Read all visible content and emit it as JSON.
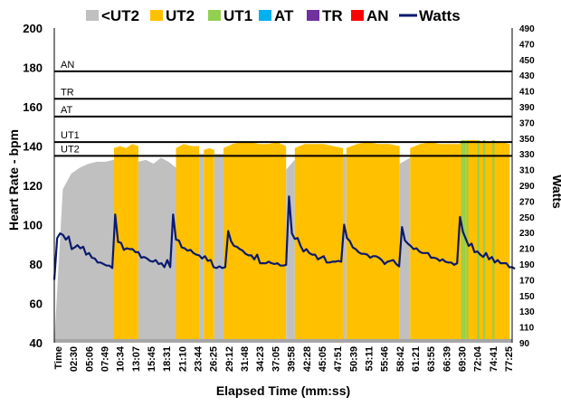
{
  "chart_data": {
    "type": "area",
    "title": "",
    "xlabel": "Elapsed Time (mm:ss)",
    "ylabel": "Heart Rate - bpm",
    "y2label": "Watts",
    "ylim": [
      40,
      200
    ],
    "y2lim": [
      90,
      490
    ],
    "yticks": [
      40,
      60,
      80,
      100,
      120,
      140,
      160,
      180,
      200
    ],
    "y2ticks": [
      90,
      110,
      130,
      150,
      170,
      190,
      210,
      230,
      250,
      270,
      290,
      310,
      330,
      350,
      370,
      390,
      410,
      430,
      450,
      470,
      490
    ],
    "x_tick_labels": [
      "Time",
      "02:30",
      "05:06",
      "07:49",
      "10:34",
      "13:07",
      "15:45",
      "18:31",
      "21:10",
      "23:44",
      "26:25",
      "29:12",
      "31:48",
      "34:23",
      "37:05",
      "39:58",
      "42:28",
      "45:05",
      "47:51",
      "50:39",
      "53:11",
      "55:46",
      "58:42",
      "61:21",
      "63:55",
      "66:39",
      "69:30",
      "72:04",
      "74:41",
      "77:25"
    ],
    "legend": [
      {
        "name": "<UT2",
        "color": "#c0c0c0",
        "kind": "box"
      },
      {
        "name": "UT2",
        "color": "#ffc000",
        "kind": "box"
      },
      {
        "name": "UT1",
        "color": "#92d050",
        "kind": "box"
      },
      {
        "name": "AT",
        "color": "#00b0f0",
        "kind": "box"
      },
      {
        "name": "TR",
        "color": "#7030a0",
        "kind": "box"
      },
      {
        "name": "AN",
        "color": "#ff0000",
        "kind": "box"
      },
      {
        "name": "Watts",
        "color": "#0a1a6e",
        "kind": "line"
      }
    ],
    "zone_thresholds": [
      {
        "name": "UT2",
        "hr": 135
      },
      {
        "name": "UT1",
        "hr": 142
      },
      {
        "name": "AT",
        "hr": 155
      },
      {
        "name": "TR",
        "hr": 164
      },
      {
        "name": "AN",
        "hr": 178
      }
    ],
    "hr_segments": [
      {
        "start": 0.0,
        "end": 10.3,
        "zone": "<UT2",
        "hr": [
          40,
          118,
          126,
          129,
          131,
          132,
          132,
          133
        ]
      },
      {
        "start": 10.3,
        "end": 14.5,
        "zone": "UT2",
        "hr": [
          139,
          140,
          139,
          141,
          140
        ]
      },
      {
        "start": 14.5,
        "end": 21.0,
        "zone": "<UT2",
        "hr": [
          132,
          133,
          131,
          134,
          132,
          129
        ]
      },
      {
        "start": 21.0,
        "end": 25.0,
        "zone": "UT2",
        "hr": [
          139,
          141,
          140,
          140
        ]
      },
      {
        "start": 25.0,
        "end": 25.8,
        "zone": "<UT2",
        "hr": [
          136,
          136
        ]
      },
      {
        "start": 25.8,
        "end": 27.6,
        "zone": "UT2",
        "hr": [
          138,
          139,
          138
        ]
      },
      {
        "start": 27.6,
        "end": 29.2,
        "zone": "<UT2",
        "hr": [
          136,
          136
        ]
      },
      {
        "start": 29.2,
        "end": 40.0,
        "zone": "UT2",
        "hr": [
          139,
          141,
          142,
          142,
          141,
          141,
          142,
          140
        ]
      },
      {
        "start": 40.0,
        "end": 41.5,
        "zone": "<UT2",
        "hr": [
          128,
          133
        ]
      },
      {
        "start": 41.5,
        "end": 49.8,
        "zone": "UT2",
        "hr": [
          139,
          141,
          141,
          141,
          140,
          139
        ]
      },
      {
        "start": 49.8,
        "end": 50.4,
        "zone": "<UT2",
        "hr": [
          136,
          136
        ]
      },
      {
        "start": 50.4,
        "end": 59.6,
        "zone": "UT2",
        "hr": [
          139,
          141,
          142,
          141,
          141,
          140
        ]
      },
      {
        "start": 59.6,
        "end": 61.4,
        "zone": "<UT2",
        "hr": [
          131,
          134
        ]
      },
      {
        "start": 61.4,
        "end": 70.0,
        "zone": "UT2",
        "hr": [
          139,
          141,
          142,
          141,
          141,
          141
        ]
      },
      {
        "start": 70.0,
        "end": 78.6,
        "zone": "UT2",
        "hr": [
          142,
          143,
          143,
          142,
          142,
          142,
          141
        ]
      }
    ],
    "ut1_spikes": [
      70.2,
      70.6,
      71.1,
      73.0,
      74.0,
      75.6
    ],
    "watts": {
      "sampling_interval_min": 0.5,
      "values": [
        170,
        223,
        229,
        227,
        221,
        225,
        209,
        211,
        214,
        210,
        212,
        202,
        204,
        198,
        197,
        192,
        192,
        190,
        188,
        188,
        185,
        253,
        218,
        217,
        208,
        210,
        209,
        209,
        205,
        205,
        198,
        199,
        197,
        194,
        193,
        195,
        190,
        191,
        186,
        195,
        186,
        253,
        221,
        220,
        211,
        210,
        207,
        208,
        204,
        202,
        201,
        197,
        200,
        194,
        195,
        186,
        185,
        187,
        185,
        186,
        232,
        219,
        213,
        212,
        209,
        207,
        203,
        201,
        201,
        196,
        202,
        191,
        191,
        191,
        193,
        191,
        190,
        191,
        188,
        188,
        189,
        276,
        229,
        222,
        223,
        213,
        206,
        209,
        204,
        202,
        202,
        196,
        198,
        200,
        192,
        192,
        193,
        193,
        194,
        193,
        240,
        223,
        219,
        211,
        209,
        205,
        203,
        203,
        202,
        198,
        200,
        200,
        198,
        195,
        190,
        193,
        194,
        195,
        190,
        187,
        237,
        220,
        216,
        213,
        209,
        210,
        206,
        204,
        204,
        204,
        198,
        198,
        197,
        194,
        196,
        193,
        192,
        192,
        189,
        191,
        250,
        231,
        222,
        213,
        216,
        205,
        206,
        202,
        199,
        204,
        196,
        199,
        192,
        195,
        191,
        191,
        191,
        186,
        186,
        184
      ]
    }
  }
}
